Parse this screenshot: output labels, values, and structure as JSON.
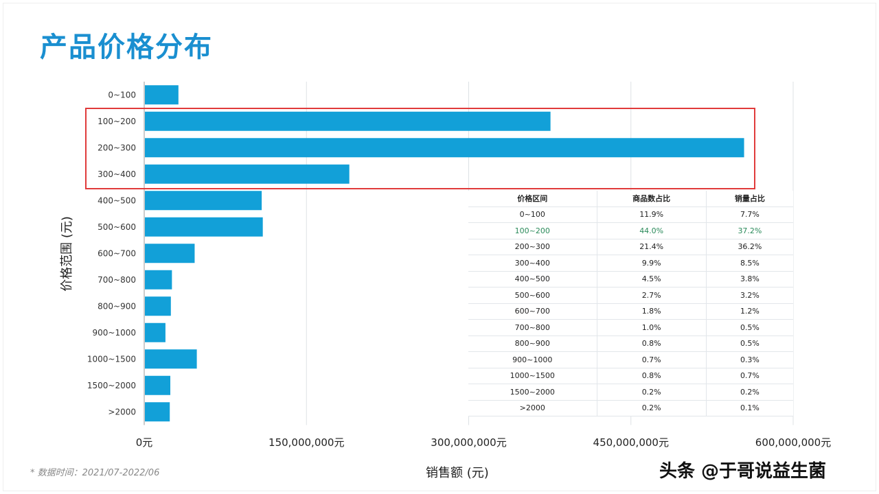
{
  "title": "产品价格分布",
  "colors": {
    "bar": "#12a0d8",
    "title": "#1a8fd0",
    "highlight_box": "#e03a3a",
    "highlight_row": "#2a8a5a"
  },
  "chart_data": {
    "type": "bar",
    "orientation": "horizontal",
    "title": "产品价格分布",
    "xlabel": "销售额 (元)",
    "ylabel": "价格范围 (元)",
    "xlim": [
      0,
      600000000
    ],
    "xticks": [
      "0元",
      "150,000,000元",
      "300,000,000元",
      "450,000,000元",
      "600,000,000元"
    ],
    "grid": true,
    "categories": [
      "0~100",
      "100~200",
      "200~300",
      "300~400",
      "400~500",
      "500~600",
      "600~700",
      "700~800",
      "800~900",
      "900~1000",
      "1000~1500",
      "1500~2000",
      ">2000"
    ],
    "values": [
      31000000,
      375000000,
      554000000,
      189000000,
      108000000,
      109000000,
      46000000,
      25000000,
      24000000,
      19000000,
      48000000,
      23500000,
      23000000
    ],
    "highlighted_categories": [
      "100~200",
      "200~300",
      "300~400"
    ]
  },
  "table": {
    "headers": [
      "价格区间",
      "商品数占比",
      "销量占比"
    ],
    "rows": [
      [
        "0~100",
        "11.9%",
        "7.7%"
      ],
      [
        "100~200",
        "44.0%",
        "37.2%"
      ],
      [
        "200~300",
        "21.4%",
        "36.2%"
      ],
      [
        "300~400",
        "9.9%",
        "8.5%"
      ],
      [
        "400~500",
        "4.5%",
        "3.8%"
      ],
      [
        "500~600",
        "2.7%",
        "3.2%"
      ],
      [
        "600~700",
        "1.8%",
        "1.2%"
      ],
      [
        "700~800",
        "1.0%",
        "0.5%"
      ],
      [
        "800~900",
        "0.8%",
        "0.5%"
      ],
      [
        "900~1000",
        "0.7%",
        "0.3%"
      ],
      [
        "1000~1500",
        "0.8%",
        "0.7%"
      ],
      [
        "1500~2000",
        "0.2%",
        "0.2%"
      ],
      [
        ">2000",
        "0.2%",
        "0.1%"
      ]
    ],
    "highlighted_row": 1
  },
  "note": "* 数据时间：2021/07-2022/06",
  "watermark": "头条 @于哥说益生菌"
}
